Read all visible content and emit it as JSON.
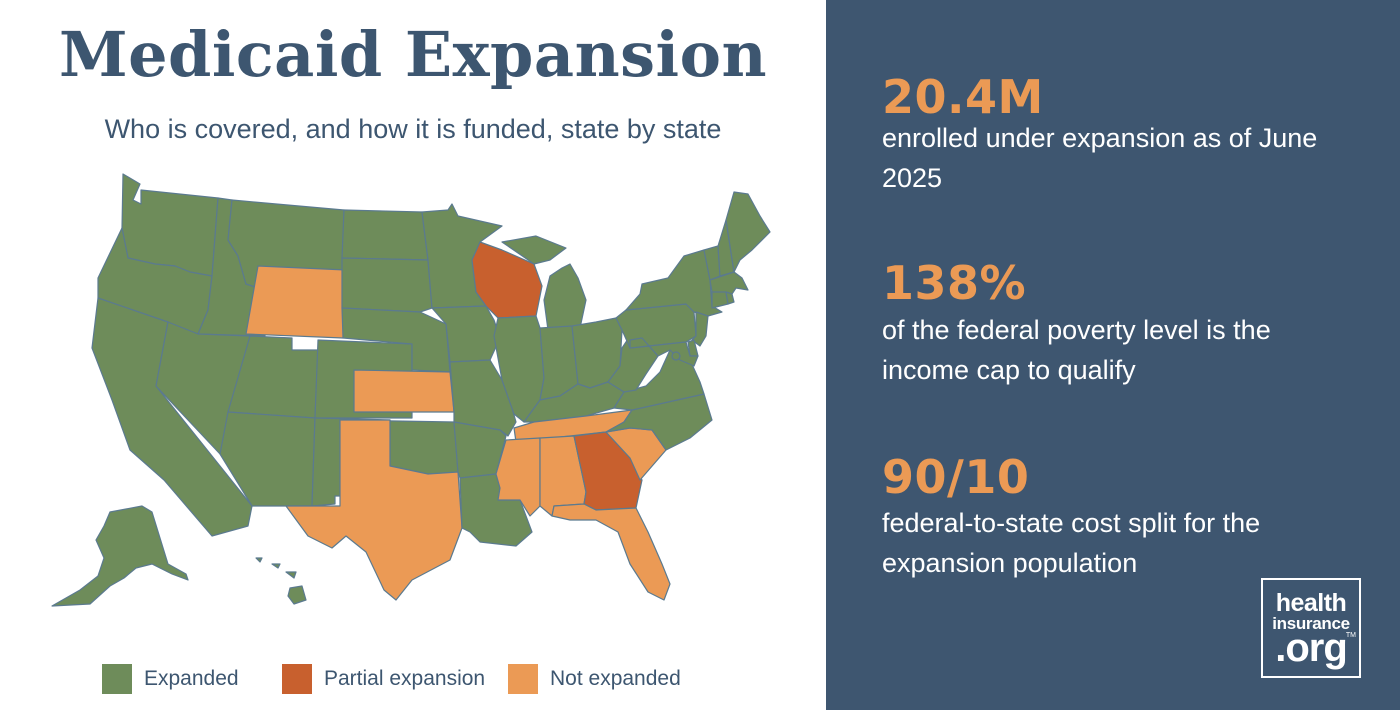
{
  "header": {
    "title": "Medicaid Expansion",
    "subtitle": "Who is covered, and how it is funded, state by state"
  },
  "colors": {
    "expanded": "#6e8c5a",
    "partial": "#c8602e",
    "not_expanded": "#eb9a55",
    "panel": "#3e5670",
    "accent": "#eb9a55"
  },
  "legend": [
    {
      "label": "Expanded",
      "status": "expanded"
    },
    {
      "label": "Partial expansion",
      "status": "partial"
    },
    {
      "label": "Not expanded",
      "status": "not_expanded"
    }
  ],
  "map": {
    "states": {
      "WA": "expanded",
      "OR": "expanded",
      "CA": "expanded",
      "ID": "expanded",
      "NV": "expanded",
      "MT": "expanded",
      "WY": "not_expanded",
      "UT": "expanded",
      "AZ": "expanded",
      "CO": "expanded",
      "NM": "expanded",
      "ND": "expanded",
      "SD": "expanded",
      "NE": "expanded",
      "KS": "not_expanded",
      "OK": "expanded",
      "TX": "not_expanded",
      "MN": "expanded",
      "IA": "expanded",
      "MO": "expanded",
      "AR": "expanded",
      "LA": "expanded",
      "WI": "partial",
      "IL": "expanded",
      "MI": "expanded",
      "IN": "expanded",
      "OH": "expanded",
      "KY": "expanded",
      "TN": "not_expanded",
      "MS": "not_expanded",
      "AL": "not_expanded",
      "GA": "partial",
      "FL": "not_expanded",
      "SC": "not_expanded",
      "NC": "expanded",
      "VA": "expanded",
      "WV": "expanded",
      "PA": "expanded",
      "NY": "expanded",
      "NJ": "expanded",
      "DE": "expanded",
      "MD": "expanded",
      "DC": "expanded",
      "CT": "expanded",
      "RI": "expanded",
      "MA": "expanded",
      "VT": "expanded",
      "NH": "expanded",
      "ME": "expanded",
      "AK": "expanded",
      "HI": "expanded"
    }
  },
  "stats": [
    {
      "value": "20.4M",
      "description": "enrolled under expansion as of June 2025"
    },
    {
      "value": "138%",
      "description": "of the federal poverty level is the income cap to qualify"
    },
    {
      "value": "90/10",
      "description": "federal-to-state cost split for the expansion population"
    }
  ],
  "logo": {
    "line1": "health",
    "line2": "insurance",
    "line3": ".org",
    "tm": "TM"
  }
}
